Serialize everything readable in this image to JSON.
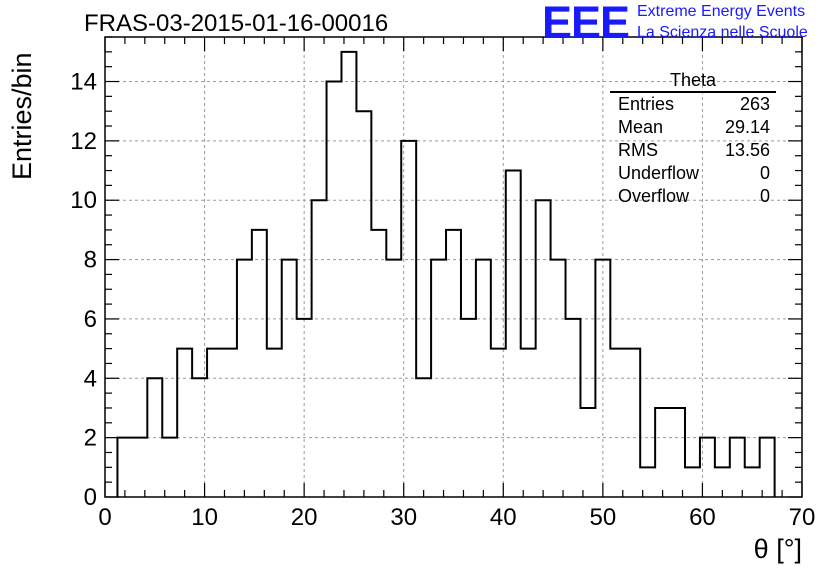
{
  "header": {
    "title": "FRAS-03-2015-01-16-00016",
    "logo_text": "EEE",
    "logo_line1": "Extreme Energy Events",
    "logo_line2": "La Scienza nelle Scuole",
    "logo_color": "#1a1aff"
  },
  "stats": {
    "title": "Theta",
    "rows": [
      {
        "label": "Entries",
        "value": "263"
      },
      {
        "label": "Mean",
        "value": "29.14"
      },
      {
        "label": "RMS",
        "value": "13.56"
      },
      {
        "label": "Underflow",
        "value": "0"
      },
      {
        "label": "Overflow",
        "value": "0"
      }
    ]
  },
  "chart_data": {
    "type": "bar",
    "style": "step-histogram",
    "xlabel": "θ [°]",
    "ylabel": "Entries/bin",
    "xlim": [
      0,
      70
    ],
    "ylim": [
      0,
      15.5
    ],
    "xticks": [
      0,
      10,
      20,
      30,
      40,
      50,
      60,
      70
    ],
    "yticks": [
      0,
      2,
      4,
      6,
      8,
      10,
      12,
      14
    ],
    "grid": true,
    "bin_width": 1.5,
    "bin_edges_start": 1.25,
    "values": [
      2,
      2,
      4,
      2,
      5,
      4,
      5,
      5,
      8,
      9,
      5,
      8,
      6,
      10,
      14,
      15,
      13,
      9,
      8,
      12,
      4,
      8,
      9,
      6,
      8,
      5,
      11,
      5,
      10,
      8,
      6,
      3,
      8,
      5,
      5,
      1,
      3,
      3,
      1,
      2,
      1,
      2,
      1,
      2
    ],
    "line_color": "#000000"
  }
}
